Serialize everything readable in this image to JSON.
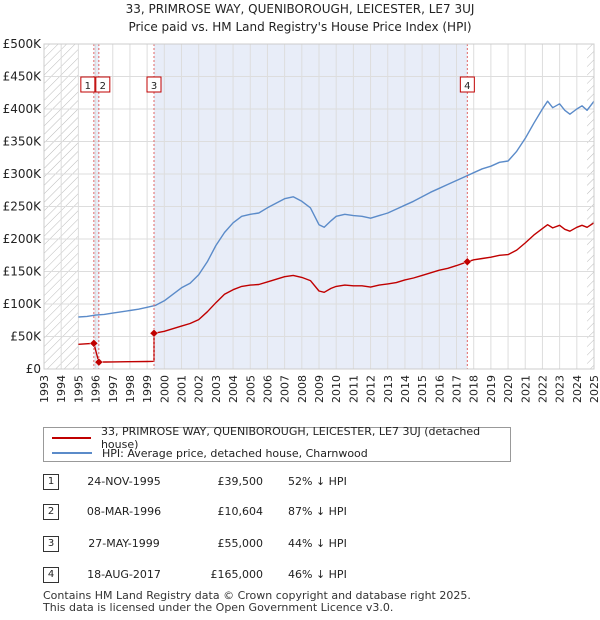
{
  "header": {
    "title_line1": "33, PRIMROSE WAY, QUENIBOROUGH, LEICESTER, LE7 3UJ",
    "title_line2": "Price paid vs. HM Land Registry's House Price Index (HPI)"
  },
  "legend": {
    "property_label": "33, PRIMROSE WAY, QUENIBOROUGH, LEICESTER, LE7 3UJ (detached house)",
    "hpi_label": "HPI: Average price, detached house, Charnwood"
  },
  "transactions": [
    {
      "num": "1",
      "date": "24-NOV-1995",
      "price": "£39,500",
      "hpi": "52% ↓ HPI"
    },
    {
      "num": "2",
      "date": "08-MAR-1996",
      "price": "£10,604",
      "hpi": "87% ↓ HPI"
    },
    {
      "num": "3",
      "date": "27-MAY-1999",
      "price": "£55,000",
      "hpi": "44% ↓ HPI"
    },
    {
      "num": "4",
      "date": "18-AUG-2017",
      "price": "£165,000",
      "hpi": "46% ↓ HPI"
    }
  ],
  "footer": {
    "line1": "Contains HM Land Registry data © Crown copyright and database right 2025.",
    "line2": "This data is licensed under the Open Government Licence v3.0."
  },
  "colors": {
    "property": "#c00000",
    "hpi": "#5b8bc9",
    "shade": "#e8edf8",
    "marker_line": "#e06666"
  },
  "chart_data": {
    "type": "line",
    "title": "33, PRIMROSE WAY, QUENIBOROUGH, LEICESTER, LE7 3UJ",
    "subtitle": "Price paid vs. HM Land Registry's House Price Index (HPI)",
    "xlabel": "",
    "ylabel": "",
    "xlim": [
      1993,
      2025
    ],
    "ylim": [
      0,
      500000
    ],
    "x_ticks": [
      1993,
      1994,
      1995,
      1996,
      1997,
      1998,
      1999,
      2000,
      2001,
      2002,
      2003,
      2004,
      2005,
      2006,
      2007,
      2008,
      2009,
      2010,
      2011,
      2012,
      2013,
      2014,
      2015,
      2016,
      2017,
      2018,
      2019,
      2020,
      2021,
      2022,
      2023,
      2024,
      2025
    ],
    "y_ticks": [
      {
        "value": 0,
        "label": "£0"
      },
      {
        "value": 50000,
        "label": "£50K"
      },
      {
        "value": 100000,
        "label": "£100K"
      },
      {
        "value": 150000,
        "label": "£150K"
      },
      {
        "value": 200000,
        "label": "£200K"
      },
      {
        "value": 250000,
        "label": "£250K"
      },
      {
        "value": 300000,
        "label": "£300K"
      },
      {
        "value": 350000,
        "label": "£350K"
      },
      {
        "value": 400000,
        "label": "£400K"
      },
      {
        "value": 450000,
        "label": "£450K"
      },
      {
        "value": 500000,
        "label": "£500K"
      }
    ],
    "grid": true,
    "shaded_ranges": [
      [
        1995.9,
        1996.19
      ],
      [
        1999.4,
        2017.63
      ]
    ],
    "hatched_ranges": [
      [
        1993,
        1995.0
      ],
      [
        2024.6,
        2025
      ]
    ],
    "sale_markers": [
      {
        "label": "1",
        "x": 1995.9,
        "y": 39500
      },
      {
        "label": "2",
        "x": 1996.19,
        "y": 10604
      },
      {
        "label": "3",
        "x": 1999.4,
        "y": 55000
      },
      {
        "label": "4",
        "x": 2017.63,
        "y": 165000
      }
    ],
    "series": [
      {
        "name": "HPI: Average price, detached house, Charnwood",
        "x": [
          1995.0,
          1995.5,
          1996.0,
          1996.5,
          1997.0,
          1997.5,
          1998.0,
          1998.5,
          1999.0,
          1999.5,
          2000.0,
          2000.5,
          2001.0,
          2001.5,
          2002.0,
          2002.5,
          2003.0,
          2003.5,
          2004.0,
          2004.5,
          2005.0,
          2005.5,
          2006.0,
          2006.5,
          2007.0,
          2007.5,
          2008.0,
          2008.5,
          2009.0,
          2009.3,
          2009.7,
          2010.0,
          2010.5,
          2011.0,
          2011.5,
          2012.0,
          2012.5,
          2013.0,
          2013.5,
          2014.0,
          2014.5,
          2015.0,
          2015.5,
          2016.0,
          2016.5,
          2017.0,
          2017.5,
          2018.0,
          2018.5,
          2019.0,
          2019.5,
          2020.0,
          2020.5,
          2021.0,
          2021.5,
          2022.0,
          2022.3,
          2022.6,
          2023.0,
          2023.3,
          2023.6,
          2024.0,
          2024.3,
          2024.6,
          2025.0
        ],
        "values": [
          80000,
          81000,
          83000,
          84000,
          86000,
          88000,
          90000,
          92000,
          95000,
          98000,
          105000,
          115000,
          125000,
          132000,
          145000,
          165000,
          190000,
          210000,
          225000,
          235000,
          238000,
          240000,
          248000,
          255000,
          262000,
          265000,
          258000,
          248000,
          222000,
          218000,
          228000,
          235000,
          238000,
          236000,
          235000,
          232000,
          236000,
          240000,
          246000,
          252000,
          258000,
          265000,
          272000,
          278000,
          284000,
          290000,
          296000,
          302000,
          308000,
          312000,
          318000,
          320000,
          335000,
          355000,
          378000,
          400000,
          412000,
          402000,
          408000,
          398000,
          392000,
          400000,
          405000,
          398000,
          412000
        ]
      },
      {
        "name": "33, PRIMROSE WAY, QUENIBOROUGH, LEICESTER, LE7 3UJ (detached house)",
        "x": [
          1995.0,
          1995.9,
          1995.9,
          1996.19,
          1996.19,
          1996.6,
          1997.0,
          1998.0,
          1999.0,
          1999.4,
          1999.4,
          2000.0,
          2000.5,
          2001.0,
          2001.5,
          2002.0,
          2002.5,
          2003.0,
          2003.5,
          2004.0,
          2004.5,
          2005.0,
          2005.5,
          2006.0,
          2006.5,
          2007.0,
          2007.5,
          2008.0,
          2008.5,
          2009.0,
          2009.3,
          2009.7,
          2010.0,
          2010.5,
          2011.0,
          2011.5,
          2012.0,
          2012.5,
          2013.0,
          2013.5,
          2014.0,
          2014.5,
          2015.0,
          2015.5,
          2016.0,
          2016.5,
          2017.0,
          2017.63,
          2018.0,
          2018.5,
          2019.0,
          2019.5,
          2020.0,
          2020.5,
          2021.0,
          2021.5,
          2022.0,
          2022.3,
          2022.6,
          2023.0,
          2023.3,
          2023.6,
          2024.0,
          2024.3,
          2024.6,
          2025.0
        ],
        "values": [
          38000,
          39500,
          39500,
          10604,
          10604,
          10800,
          11000,
          11200,
          11500,
          11800,
          55000,
          58000,
          62000,
          66000,
          70000,
          76000,
          88000,
          102000,
          115000,
          122000,
          127000,
          129000,
          130000,
          134000,
          138000,
          142000,
          144000,
          141000,
          136000,
          120000,
          118000,
          124000,
          127000,
          129000,
          128000,
          128000,
          126000,
          129000,
          131000,
          133000,
          137000,
          140000,
          144000,
          148000,
          152000,
          155000,
          159000,
          165000,
          168000,
          170000,
          172000,
          175000,
          176000,
          183000,
          194000,
          206000,
          216000,
          222000,
          217000,
          221000,
          215000,
          212000,
          218000,
          221000,
          218000,
          225000
        ]
      }
    ]
  }
}
